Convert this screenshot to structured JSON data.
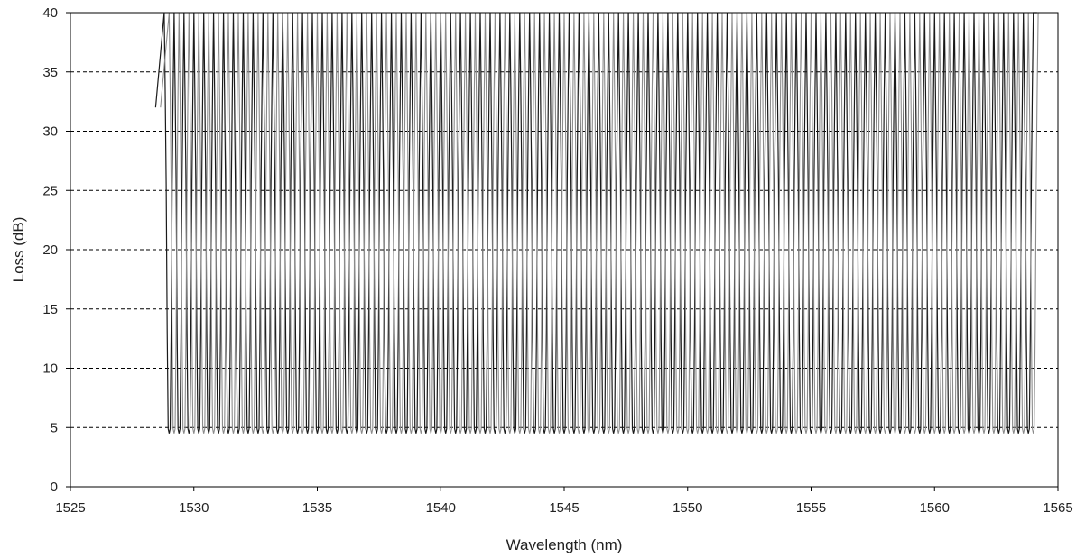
{
  "chart_data": {
    "type": "line",
    "title": "",
    "xlabel": "Wavelength (nm)",
    "ylabel": "Loss (dB)",
    "xlim": [
      1525,
      1565
    ],
    "ylim": [
      0,
      40
    ],
    "xticks": [
      1525,
      1530,
      1535,
      1540,
      1545,
      1550,
      1555,
      1560,
      1565
    ],
    "yticks": [
      0,
      5,
      10,
      15,
      20,
      25,
      30,
      35,
      40
    ],
    "grid": "horizontal dashed",
    "legend": "none",
    "series": [
      {
        "color": "#1a1a1a",
        "description_channels": {
          "first_channel_nm": 1529.0,
          "last_channel_nm": 1563.8,
          "channel_spacing_nm": 0.4,
          "min_loss_db": 4.5,
          "max_loss_db": 40
        }
      },
      {
        "color": "#8c8c8c",
        "description_channels": {
          "first_channel_nm": 1529.2,
          "last_channel_nm": 1564.0,
          "channel_spacing_nm": 0.4,
          "min_loss_db": 4.5,
          "max_loss_db": 40
        }
      }
    ]
  }
}
